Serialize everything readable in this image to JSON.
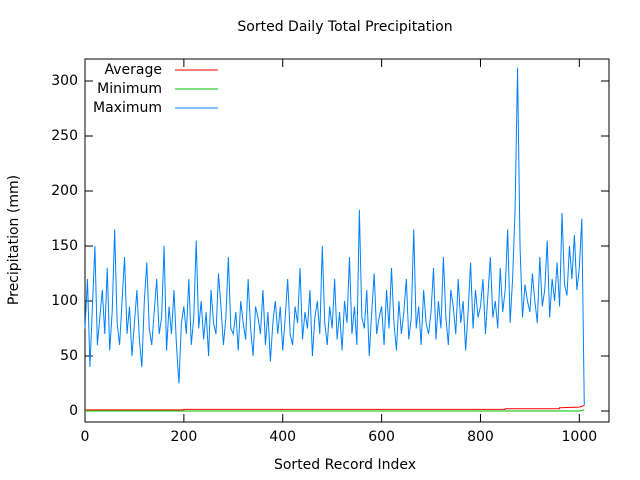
{
  "chart_data": {
    "type": "line",
    "title": "Sorted Daily Total Precipitation",
    "x_label": "Sorted Record Index",
    "y_label": "Precipitation (mm)",
    "xlim": [
      0,
      1060
    ],
    "xticks": [
      0,
      200,
      400,
      600,
      800,
      1000
    ],
    "ylim": [
      -10,
      320
    ],
    "yticks": [
      0,
      50,
      100,
      150,
      200,
      250,
      300
    ],
    "legend": "top-left",
    "series": [
      {
        "name": "Average",
        "color": "#ff0000",
        "x": [
          0,
          200,
          200,
          850,
          850,
          960,
          960,
          1000,
          1010
        ],
        "values": [
          1,
          1,
          1.5,
          1.5,
          2,
          2,
          3,
          3.5,
          5
        ]
      },
      {
        "name": "Minimum",
        "color": "#00c000",
        "x": [
          0,
          1000,
          1010
        ],
        "values": [
          0,
          0,
          1
        ]
      },
      {
        "name": "Maximum",
        "color": "#0080ff",
        "x": [
          0,
          5,
          10,
          15,
          20,
          25,
          30,
          35,
          40,
          45,
          50,
          55,
          60,
          65,
          70,
          75,
          80,
          85,
          90,
          95,
          100,
          105,
          110,
          115,
          120,
          125,
          130,
          135,
          140,
          145,
          150,
          155,
          160,
          165,
          170,
          175,
          180,
          185,
          190,
          195,
          200,
          205,
          210,
          215,
          220,
          225,
          230,
          235,
          240,
          245,
          250,
          255,
          260,
          265,
          270,
          275,
          280,
          285,
          290,
          295,
          300,
          305,
          310,
          315,
          320,
          325,
          330,
          335,
          340,
          345,
          350,
          355,
          360,
          365,
          370,
          375,
          380,
          385,
          390,
          395,
          400,
          405,
          410,
          415,
          420,
          425,
          430,
          435,
          440,
          445,
          450,
          455,
          460,
          465,
          470,
          475,
          480,
          485,
          490,
          495,
          500,
          505,
          510,
          515,
          520,
          525,
          530,
          535,
          540,
          545,
          550,
          555,
          560,
          565,
          570,
          575,
          580,
          585,
          590,
          595,
          600,
          605,
          610,
          615,
          620,
          625,
          630,
          635,
          640,
          645,
          650,
          655,
          660,
          665,
          670,
          675,
          680,
          685,
          690,
          695,
          700,
          705,
          710,
          715,
          720,
          725,
          730,
          735,
          740,
          745,
          750,
          755,
          760,
          765,
          770,
          775,
          780,
          785,
          790,
          795,
          800,
          805,
          810,
          815,
          820,
          825,
          830,
          835,
          840,
          845,
          850,
          855,
          860,
          865,
          870,
          875,
          880,
          885,
          890,
          895,
          900,
          905,
          910,
          915,
          920,
          925,
          930,
          935,
          940,
          945,
          950,
          955,
          960,
          965,
          970,
          975,
          980,
          985,
          990,
          995,
          1000,
          1005,
          1010
        ],
        "values": [
          75,
          120,
          40,
          95,
          150,
          60,
          85,
          110,
          70,
          130,
          55,
          90,
          165,
          80,
          60,
          100,
          140,
          70,
          95,
          50,
          80,
          110,
          65,
          40,
          100,
          135,
          75,
          60,
          90,
          120,
          70,
          85,
          150,
          55,
          95,
          70,
          110,
          60,
          25,
          80,
          95,
          70,
          120,
          60,
          85,
          155,
          75,
          100,
          65,
          90,
          50,
          110,
          80,
          70,
          125,
          95,
          60,
          85,
          140,
          75,
          70,
          90,
          55,
          100,
          80,
          65,
          120,
          75,
          50,
          95,
          85,
          70,
          110,
          60,
          90,
          45,
          80,
          100,
          70,
          95,
          55,
          85,
          120,
          70,
          60,
          95,
          80,
          130,
          65,
          90,
          75,
          110,
          50,
          85,
          100,
          70,
          150,
          80,
          60,
          95,
          75,
          120,
          65,
          90,
          55,
          100,
          80,
          140,
          70,
          95,
          60,
          183,
          85,
          75,
          110,
          50,
          90,
          125,
          70,
          85,
          95,
          60,
          110,
          75,
          130,
          80,
          55,
          100,
          70,
          90,
          120,
          65,
          85,
          165,
          75,
          95,
          60,
          110,
          80,
          70,
          90,
          130,
          65,
          100,
          75,
          140,
          85,
          60,
          110,
          95,
          70,
          120,
          80,
          100,
          55,
          90,
          135,
          75,
          110,
          85,
          95,
          120,
          70,
          105,
          140,
          85,
          100,
          75,
          130,
          90,
          110,
          165,
          80,
          120,
          183,
          312,
          150,
          85,
          115,
          100,
          90,
          125,
          100,
          80,
          140,
          95,
          110,
          155,
          85,
          120,
          100,
          135,
          95,
          180,
          115,
          105,
          150,
          120,
          160,
          110,
          130,
          175,
          5
        ]
      }
    ]
  }
}
